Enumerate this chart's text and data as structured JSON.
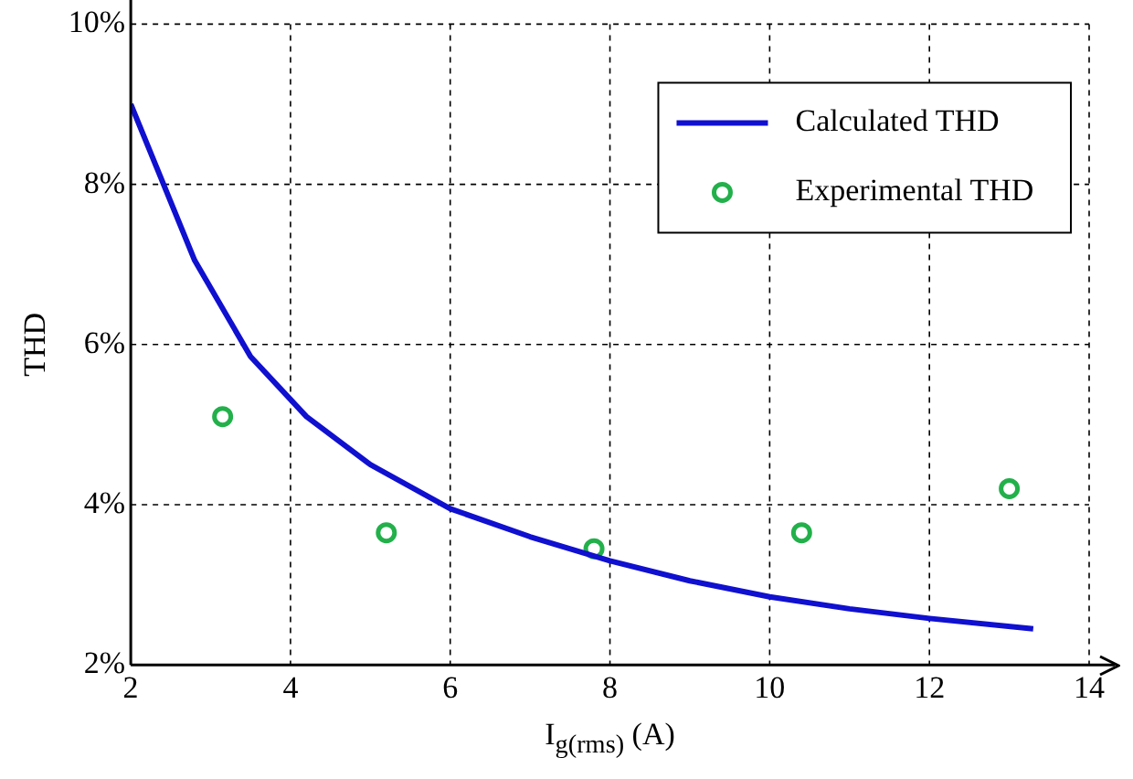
{
  "chart_data": {
    "type": "line",
    "xlabel": "I$_{g(rms)}$ (A)",
    "ylabel": "THD",
    "xlim": [
      2,
      14
    ],
    "xticks": [
      2,
      4,
      6,
      8,
      10,
      12,
      14
    ],
    "ylim": [
      2,
      10
    ],
    "yticks": [
      {
        "value": 2,
        "label": "2%"
      },
      {
        "value": 4,
        "label": "4%"
      },
      {
        "value": 6,
        "label": "6%"
      },
      {
        "value": 8,
        "label": "8%"
      },
      {
        "value": 10,
        "label": "10%"
      }
    ],
    "grid": true,
    "legend": "top right",
    "series": [
      {
        "name": "Calculated THD",
        "color": "#1010d0",
        "marker": "none",
        "line_style": "solid",
        "x": [
          2,
          2.8,
          3.5,
          4.2,
          5,
          6,
          7,
          8,
          9,
          10,
          11,
          12,
          13.3
        ],
        "values": [
          9,
          7.05,
          5.85,
          5.1,
          4.5,
          3.95,
          3.6,
          3.3,
          3.05,
          2.85,
          2.7,
          2.58,
          2.45
        ]
      },
      {
        "name": "Experimental THD",
        "type": "scatter",
        "color": "#22b04a",
        "marker": "circle",
        "x": [
          3.15,
          5.2,
          7.8,
          10.4,
          13
        ],
        "values": [
          5.1,
          3.65,
          3.45,
          3.65,
          4.2
        ]
      }
    ]
  }
}
